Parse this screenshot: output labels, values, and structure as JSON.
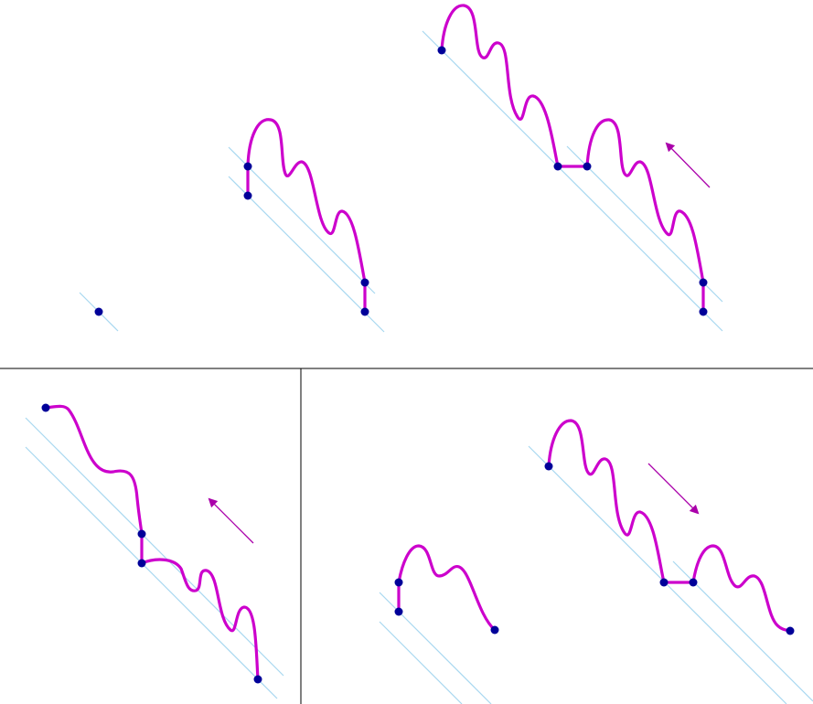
{
  "colors": {
    "guide_line": "#a8d8f0",
    "curve": "#cc00cc",
    "point": "#000099",
    "arrow": "#aa00aa",
    "divider": "#000000"
  },
  "panels": [
    {
      "name": "top",
      "stages": 3,
      "arrow": "up-left"
    },
    {
      "name": "bottom-left",
      "stages": 1,
      "arrow": "up-left"
    },
    {
      "name": "bottom-right",
      "stages": 2,
      "arrow": "down-right"
    }
  ]
}
